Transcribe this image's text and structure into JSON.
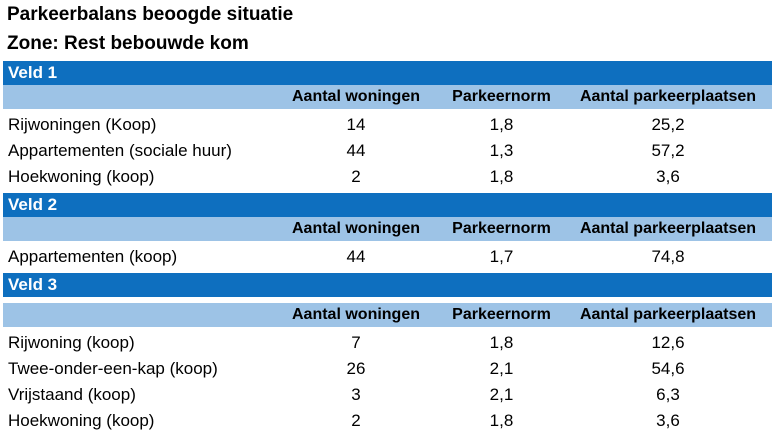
{
  "title_line1": "Parkeerbalans beoogde situatie",
  "title_line2": "Zone: Rest bebouwde kom",
  "headers": {
    "woningen": "Aantal woningen",
    "norm": "Parkeernorm",
    "plaatsen": "Aantal parkeerplaatsen"
  },
  "velden": [
    {
      "name": "Veld 1",
      "rows": [
        {
          "type": "Rijwoningen (Koop)",
          "woningen": "14",
          "norm": "1,8",
          "plaatsen": "25,2"
        },
        {
          "type": "Appartementen (sociale huur)",
          "woningen": "44",
          "norm": "1,3",
          "plaatsen": "57,2"
        },
        {
          "type": "Hoekwoning (koop)",
          "woningen": "2",
          "norm": "1,8",
          "plaatsen": "3,6"
        }
      ]
    },
    {
      "name": "Veld 2",
      "rows": [
        {
          "type": "Appartementen (koop)",
          "woningen": "44",
          "norm": "1,7",
          "plaatsen": "74,8"
        }
      ]
    },
    {
      "name": "Veld 3",
      "rows": [
        {
          "type": "Rijwoning (koop)",
          "woningen": "7",
          "norm": "1,8",
          "plaatsen": "12,6"
        },
        {
          "type": "Twee-onder-een-kap (koop)",
          "woningen": "26",
          "norm": "2,1",
          "plaatsen": "54,6"
        },
        {
          "type": "Vrijstaand (koop)",
          "woningen": "3",
          "norm": "2,1",
          "plaatsen": "6,3"
        },
        {
          "type": "Hoekwoning (koop)",
          "woningen": "2",
          "norm": "1,8",
          "plaatsen": "3,6"
        }
      ]
    }
  ],
  "colors": {
    "section_header_bg": "#0e6fbf",
    "column_header_bg": "#9dc3e6"
  }
}
